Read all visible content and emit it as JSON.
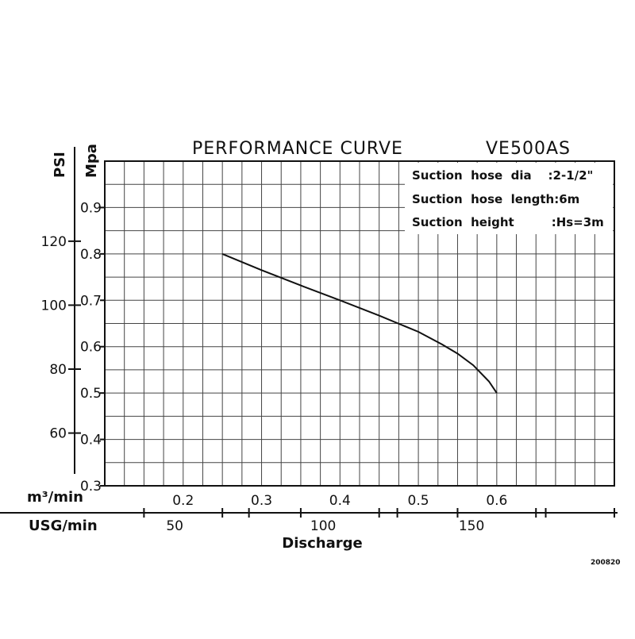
{
  "chart_data": {
    "type": "line",
    "title": "PERFORMANCE CURVE",
    "model": "VE500AS",
    "xlabel": "Discharge",
    "x_unit_primary": "m³/min",
    "x_unit_secondary": "USG/min",
    "y_unit_primary": "Mpa",
    "y_unit_secondary": "PSI",
    "xlim": [
      0.1,
      0.75
    ],
    "ylim": [
      0.3,
      1.0
    ],
    "x_ticks": [
      "0.2",
      "0.3",
      "0.4",
      "0.5",
      "0.6"
    ],
    "x_ticks_secondary": [
      "50",
      "100",
      "150"
    ],
    "y_ticks": [
      "0.3",
      "0.4",
      "0.5",
      "0.6",
      "0.7",
      "0.8",
      "0.9"
    ],
    "y_ticks_secondary": [
      "60",
      "80",
      "100",
      "120"
    ],
    "grid": true,
    "series": [
      {
        "x": [
          0.25,
          0.3,
          0.35,
          0.4,
          0.45,
          0.5,
          0.53,
          0.55,
          0.57,
          0.59,
          0.6
        ],
        "y": [
          0.8,
          0.765,
          0.732,
          0.7,
          0.667,
          0.632,
          0.605,
          0.585,
          0.56,
          0.525,
          0.5
        ]
      }
    ],
    "annotations": [
      "Suction  hose  dia    :2-1/2\"",
      "Suction  hose  length:6m",
      "Suction  height         :Hs=3m"
    ],
    "code": "200820"
  }
}
